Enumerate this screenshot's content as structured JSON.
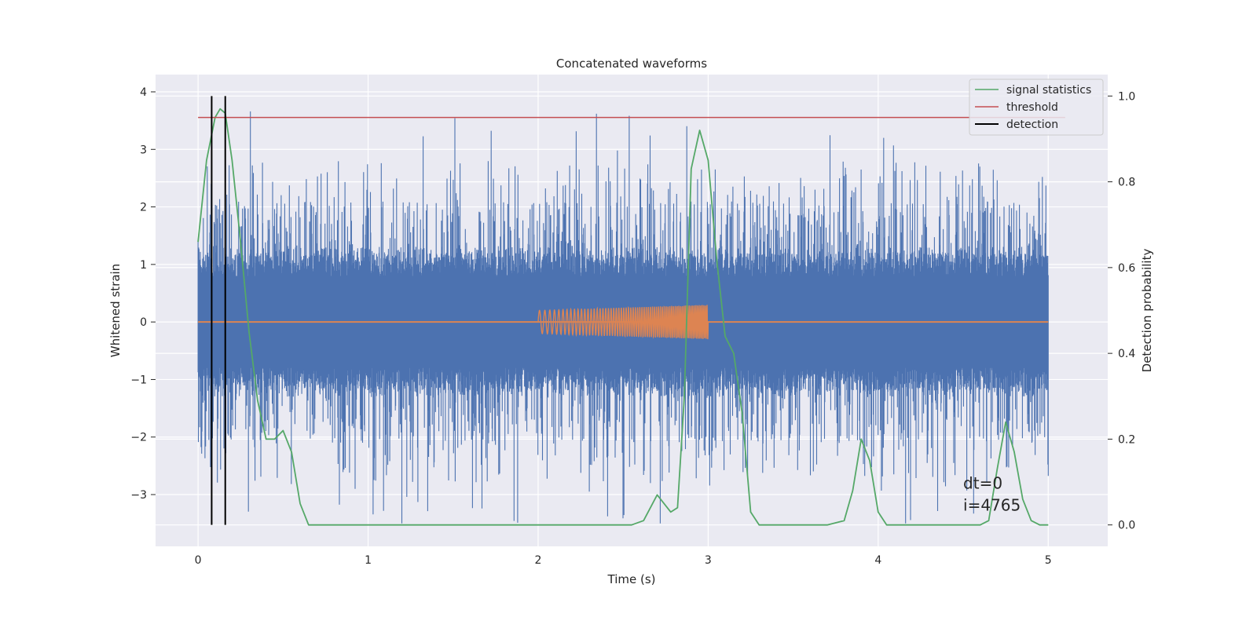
{
  "chart_data": {
    "type": "line",
    "title": "Concatenated waveforms",
    "xlabel": "Time (s)",
    "ylabel": "Whitened strain",
    "y2label": "Detection probability",
    "xlim": [
      -0.25,
      5.35
    ],
    "ylim": [
      -3.9,
      4.3
    ],
    "y2lim": [
      -0.05,
      1.05
    ],
    "x_ticks": [
      0,
      1,
      2,
      3,
      4,
      5
    ],
    "y_ticks": [
      -3,
      -2,
      -1,
      0,
      1,
      2,
      3,
      4
    ],
    "y2_ticks": [
      0.0,
      0.2,
      0.4,
      0.6,
      0.8,
      1.0
    ],
    "x_tick_labels": [
      "0",
      "1",
      "2",
      "3",
      "4",
      "5"
    ],
    "y_tick_labels": [
      "−3",
      "−2",
      "−1",
      "0",
      "1",
      "2",
      "3",
      "4"
    ],
    "y2_tick_labels": [
      "0.0",
      "0.2",
      "0.4",
      "0.6",
      "0.8",
      "1.0"
    ],
    "grid": true,
    "legend_position": "top-right",
    "annotation": {
      "lines": [
        "dt=0",
        "i=4765"
      ],
      "x": 4.5,
      "y": -2.9
    },
    "series": [
      {
        "name": "",
        "axis": "left",
        "kind": "noise",
        "color": "#4c72b0",
        "x_range": [
          0,
          5
        ],
        "core_amplitude": 0.8,
        "peak_range": [
          -3.5,
          3.9
        ]
      },
      {
        "name": "",
        "axis": "left",
        "kind": "chirp",
        "color": "#dd8452",
        "x_range": [
          0,
          5
        ],
        "burst_range": [
          2,
          3
        ],
        "amplitude_start": 0.2,
        "amplitude_end": 0.3
      },
      {
        "name": "signal statistics",
        "axis": "right",
        "color": "#55a868",
        "x": [
          0,
          0.05,
          0.1,
          0.13,
          0.16,
          0.2,
          0.25,
          0.3,
          0.35,
          0.4,
          0.45,
          0.5,
          0.55,
          0.6,
          0.65,
          1.0,
          1.5,
          2.0,
          2.4,
          2.55,
          2.62,
          2.7,
          2.78,
          2.82,
          2.86,
          2.9,
          2.95,
          3.0,
          3.05,
          3.1,
          3.15,
          3.2,
          3.25,
          3.3,
          3.35,
          3.5,
          3.7,
          3.8,
          3.85,
          3.9,
          3.95,
          4.0,
          4.05,
          4.3,
          4.6,
          4.65,
          4.7,
          4.75,
          4.8,
          4.85,
          4.9,
          4.95,
          5.0
        ],
        "values": [
          0.66,
          0.85,
          0.95,
          0.97,
          0.96,
          0.85,
          0.66,
          0.45,
          0.29,
          0.2,
          0.2,
          0.22,
          0.17,
          0.05,
          0.0,
          0.0,
          0.0,
          0.0,
          0.0,
          0.0,
          0.01,
          0.07,
          0.03,
          0.04,
          0.3,
          0.83,
          0.92,
          0.85,
          0.62,
          0.44,
          0.4,
          0.26,
          0.03,
          0.0,
          0.0,
          0.0,
          0.0,
          0.01,
          0.08,
          0.2,
          0.15,
          0.03,
          0.0,
          0.0,
          0.0,
          0.01,
          0.13,
          0.24,
          0.17,
          0.06,
          0.01,
          0.0,
          0.0
        ]
      },
      {
        "name": "threshold",
        "axis": "right",
        "color": "#c44e52",
        "x": [
          0,
          5.1
        ],
        "values": [
          0.95,
          0.95
        ]
      },
      {
        "name": "detection",
        "axis": "right",
        "color": "#000000",
        "kind": "vlines",
        "x": [
          0.08,
          0.16
        ],
        "values": [
          0.0,
          1.0
        ]
      }
    ]
  }
}
